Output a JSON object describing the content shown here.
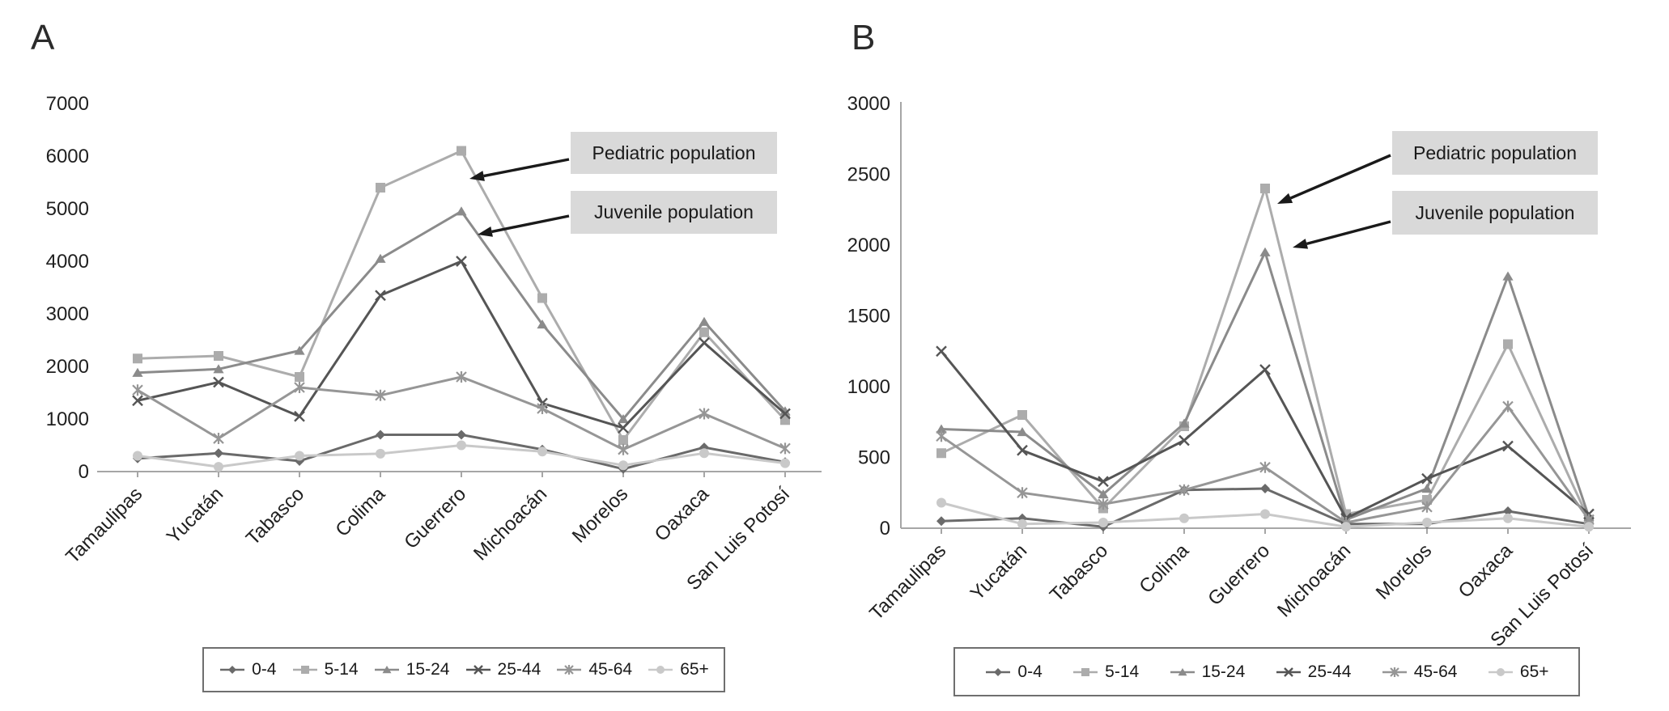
{
  "figure_title": "",
  "chart_data": [
    {
      "type": "line",
      "panel_label": "A",
      "title": "",
      "xlabel": "",
      "ylabel": "",
      "ylim": [
        0,
        7000
      ],
      "ytick_step": 1000,
      "grid": false,
      "legend_position": "bottom",
      "categories": [
        "Tamaulipas",
        "Yucatán",
        "Tabasco",
        "Colima",
        "Guerrero",
        "Michoacán",
        "Morelos",
        "Oaxaca",
        "San Luis Potosí"
      ],
      "series": [
        {
          "name": "0-4",
          "marker": "diamond",
          "color": "#6a6a6a",
          "values": [
            250,
            350,
            200,
            700,
            700,
            420,
            50,
            460,
            180
          ]
        },
        {
          "name": "5-14",
          "marker": "square",
          "color": "#acacac",
          "values": [
            2150,
            2200,
            1800,
            5400,
            6100,
            3300,
            600,
            2650,
            980
          ]
        },
        {
          "name": "15-24",
          "marker": "triangle",
          "color": "#8b8b8b",
          "values": [
            1880,
            1950,
            2300,
            4050,
            4950,
            2800,
            1000,
            2850,
            1150
          ]
        },
        {
          "name": "25-44",
          "marker": "x",
          "color": "#555555",
          "values": [
            1350,
            1700,
            1050,
            3350,
            4000,
            1300,
            830,
            2450,
            1100
          ]
        },
        {
          "name": "45-64",
          "marker": "asterisk",
          "color": "#969696",
          "values": [
            1550,
            630,
            1600,
            1450,
            1800,
            1200,
            420,
            1100,
            440
          ]
        },
        {
          "name": "65+",
          "marker": "circle",
          "color": "#c9c9c9",
          "values": [
            300,
            90,
            300,
            340,
            500,
            380,
            120,
            350,
            160
          ]
        }
      ],
      "annotations": [
        {
          "label": "Pediatric population",
          "target_series": "5-14",
          "target_category": "Guerrero"
        },
        {
          "label": "Juvenile population",
          "target_series": "15-24",
          "target_category": "Guerrero"
        }
      ]
    },
    {
      "type": "line",
      "panel_label": "B",
      "title": "",
      "xlabel": "",
      "ylabel": "",
      "ylim": [
        0,
        3000
      ],
      "ytick_step": 500,
      "grid": false,
      "legend_position": "bottom",
      "categories": [
        "Tamaulipas",
        "Yucatán",
        "Tabasco",
        "Colima",
        "Guerrero",
        "Michoacán",
        "Morelos",
        "Oaxaca",
        "San Luis Potosí"
      ],
      "series": [
        {
          "name": "0-4",
          "marker": "diamond",
          "color": "#6a6a6a",
          "values": [
            50,
            70,
            10,
            270,
            280,
            30,
            30,
            120,
            30
          ]
        },
        {
          "name": "5-14",
          "marker": "square",
          "color": "#acacac",
          "values": [
            530,
            800,
            140,
            720,
            2400,
            100,
            200,
            1300,
            60
          ]
        },
        {
          "name": "15-24",
          "marker": "triangle",
          "color": "#8b8b8b",
          "values": [
            700,
            680,
            240,
            740,
            1950,
            60,
            280,
            1780,
            80
          ]
        },
        {
          "name": "25-44",
          "marker": "x",
          "color": "#555555",
          "values": [
            1250,
            550,
            330,
            620,
            1120,
            70,
            350,
            580,
            100
          ]
        },
        {
          "name": "45-64",
          "marker": "asterisk",
          "color": "#969696",
          "values": [
            650,
            250,
            170,
            270,
            430,
            40,
            150,
            860,
            60
          ]
        },
        {
          "name": "65+",
          "marker": "circle",
          "color": "#c9c9c9",
          "values": [
            180,
            30,
            40,
            70,
            100,
            10,
            40,
            70,
            10
          ]
        }
      ],
      "annotations": [
        {
          "label": "Pediatric population",
          "target_series": "5-14",
          "target_category": "Guerrero"
        },
        {
          "label": "Juvenile population",
          "target_series": "15-24",
          "target_category": "Guerrero"
        }
      ]
    }
  ]
}
